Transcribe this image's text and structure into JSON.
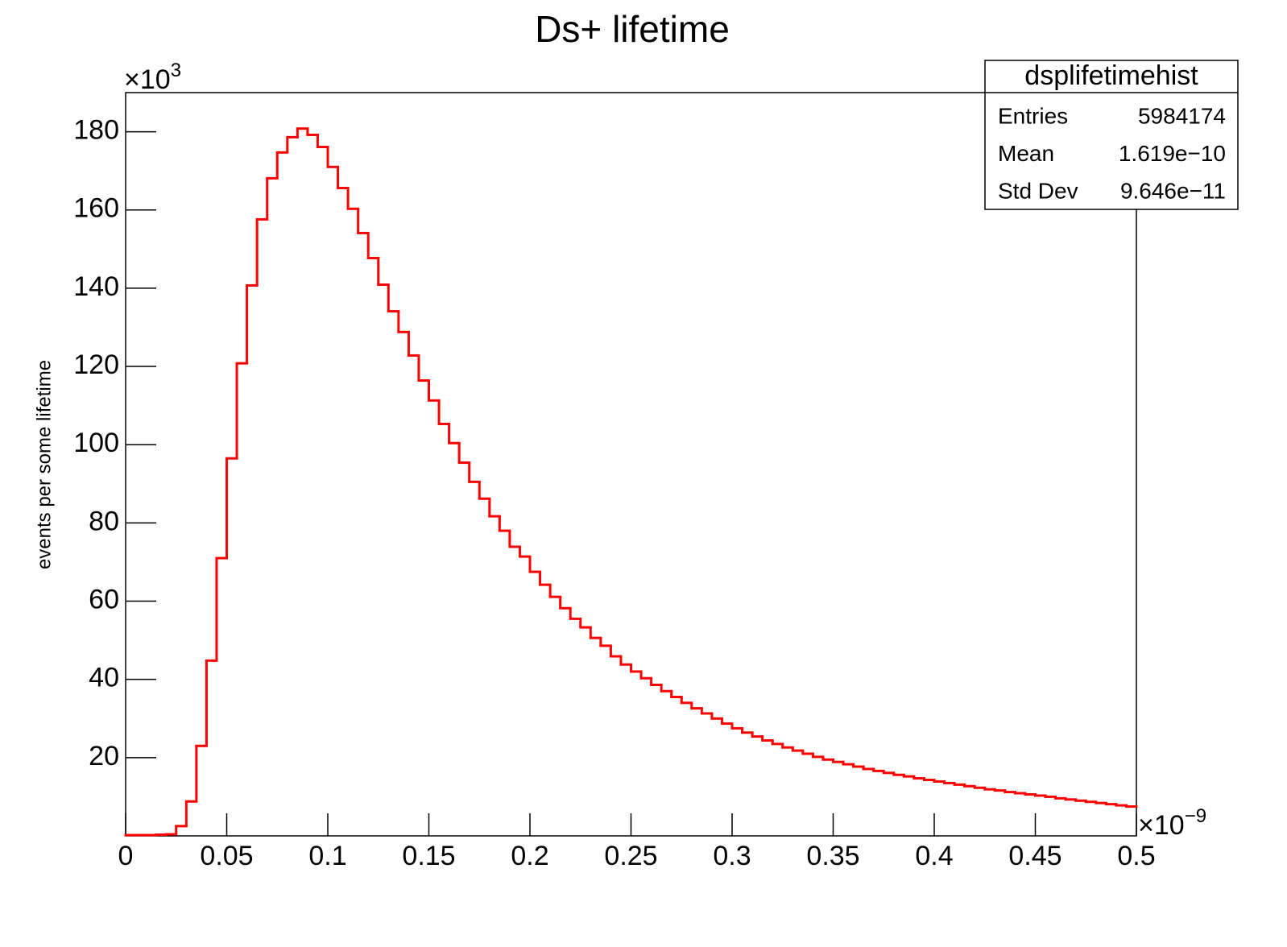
{
  "chart_data": {
    "type": "histogram",
    "title": "Ds+ lifetime",
    "y_label": "events per some lifetime",
    "x_multiplier": {
      "base": "×10",
      "exponent": "−9"
    },
    "y_multiplier": {
      "base": "×10",
      "exponent": "3"
    },
    "color": "#ff0000",
    "bins": [
      0,
      0.005,
      0.01,
      0.015,
      0.02,
      0.025,
      0.03,
      0.035,
      0.04,
      0.045,
      0.05,
      0.055,
      0.06,
      0.065,
      0.07,
      0.075,
      0.08,
      0.085,
      0.09,
      0.095,
      0.1,
      0.105,
      0.11,
      0.115,
      0.12,
      0.125,
      0.13,
      0.135,
      0.14,
      0.145,
      0.15,
      0.155,
      0.16,
      0.165,
      0.17,
      0.175,
      0.18,
      0.185,
      0.19,
      0.195,
      0.2,
      0.205,
      0.21,
      0.215,
      0.22,
      0.225,
      0.23,
      0.235,
      0.24,
      0.245,
      0.25,
      0.255,
      0.26,
      0.265,
      0.27,
      0.275,
      0.28,
      0.285,
      0.29,
      0.295,
      0.3,
      0.305,
      0.31,
      0.315,
      0.32,
      0.325,
      0.33,
      0.335,
      0.34,
      0.345,
      0.35,
      0.355,
      0.36,
      0.365,
      0.37,
      0.375,
      0.38,
      0.385,
      0.39,
      0.395,
      0.4,
      0.405,
      0.41,
      0.415,
      0.42,
      0.425,
      0.43,
      0.435,
      0.44,
      0.445,
      0.45,
      0.455,
      0.46,
      0.465,
      0.47,
      0.475,
      0.48,
      0.485,
      0.49,
      0.495,
      0.5
    ],
    "values": [
      0.2,
      0.2,
      0.2,
      0.3,
      0.4,
      2.5,
      8.8,
      23.0,
      44.8,
      71.0,
      96.5,
      120.8,
      140.7,
      157.6,
      168.1,
      174.7,
      178.6,
      180.8,
      179.2,
      176.1,
      171.0,
      165.6,
      160.3,
      154.1,
      147.7,
      140.9,
      134.1,
      128.8,
      122.8,
      116.4,
      111.3,
      105.3,
      100.4,
      95.4,
      90.5,
      86.2,
      81.7,
      78.0,
      73.9,
      71.4,
      67.5,
      64.2,
      61.1,
      58.2,
      55.5,
      53.3,
      50.6,
      48.6,
      45.9,
      43.8,
      42.0,
      40.3,
      38.6,
      37.0,
      35.5,
      34.0,
      32.6,
      31.3,
      30.0,
      28.7,
      27.5,
      26.4,
      25.4,
      24.4,
      23.5,
      22.6,
      21.8,
      21.0,
      20.2,
      19.5,
      18.9,
      18.3,
      17.7,
      17.1,
      16.6,
      16.1,
      15.6,
      15.2,
      14.7,
      14.3,
      13.9,
      13.5,
      13.1,
      12.7,
      12.3,
      11.9,
      11.6,
      11.2,
      10.9,
      10.6,
      10.3,
      10.0,
      9.6,
      9.3,
      9.0,
      8.7,
      8.4,
      8.1,
      7.8,
      7.5
    ],
    "xlim": [
      0,
      0.5
    ],
    "ylim": [
      0,
      190
    ],
    "xticks": [
      0,
      0.05,
      0.1,
      0.15,
      0.2,
      0.25,
      0.3,
      0.35,
      0.4,
      0.45,
      0.5
    ],
    "yticks": [
      20,
      40,
      60,
      80,
      100,
      120,
      140,
      160,
      180
    ],
    "stats": {
      "title": "dsplifetimehist",
      "rows": [
        [
          "Entries",
          "5984174"
        ],
        [
          "Mean",
          "1.619e−10"
        ],
        [
          "Std Dev",
          "9.646e−11"
        ]
      ]
    }
  }
}
